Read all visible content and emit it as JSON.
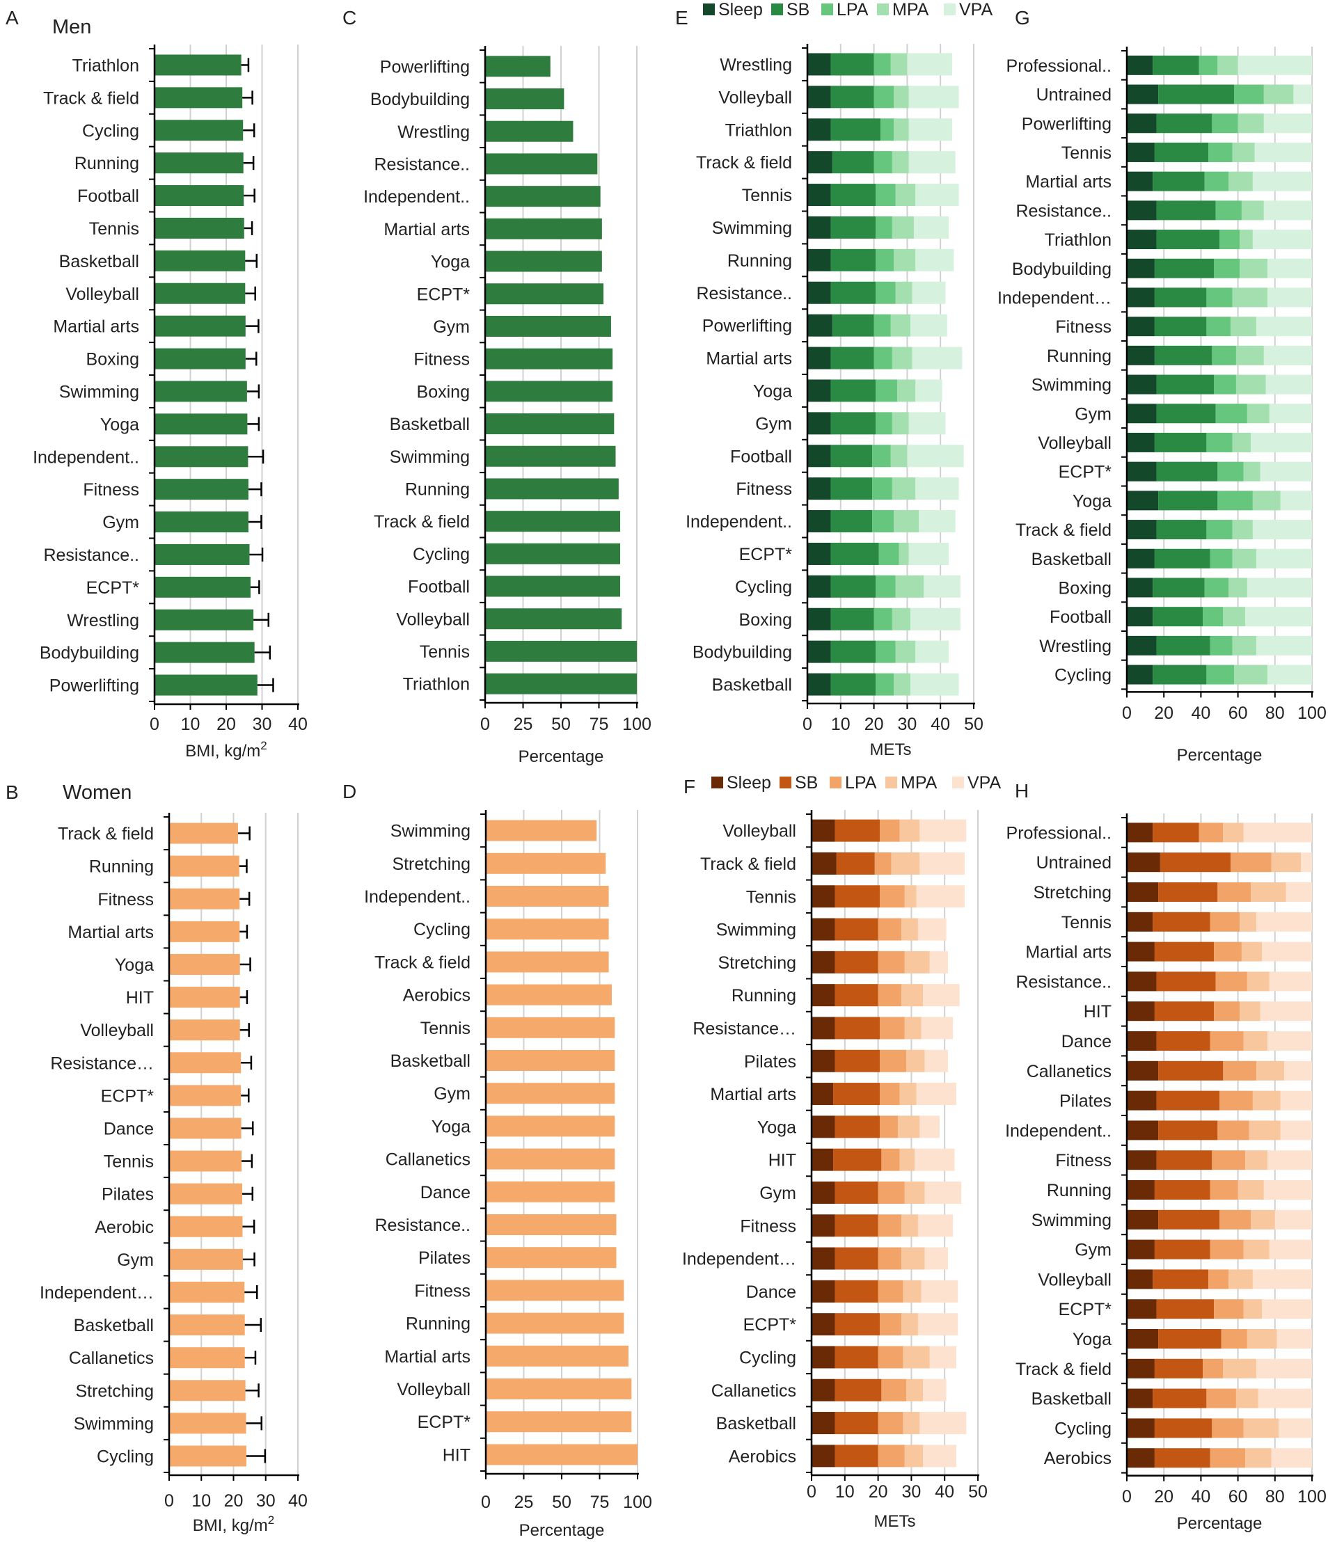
{
  "colors": {
    "men_bar": "#2e7d3e",
    "women_bar": "#f5a96b",
    "grid": "#d0d0d0",
    "axis": "#000000",
    "men_stack": [
      "#14482a",
      "#2a8a44",
      "#66c67d",
      "#a4dfb0",
      "#d6f1dd"
    ],
    "women_stack": [
      "#6a2a05",
      "#c35612",
      "#f2a468",
      "#f8c79e",
      "#fde3cf"
    ]
  },
  "chart_data": [
    {
      "id": "A",
      "panel_label": "A",
      "type": "bar",
      "title": "Men",
      "xlabel": "BMI, kg/m",
      "xlabel_sup": "2",
      "xlim": [
        0,
        40
      ],
      "xticks": [
        0,
        10,
        20,
        30,
        40
      ],
      "categories": [
        "Triathlon",
        "Track & field",
        "Cycling",
        "Running",
        "Football",
        "Tennis",
        "Basketball",
        "Volleyball",
        "Martial arts",
        "Boxing",
        "Swimming",
        "Yoga",
        "Independent..",
        "Fitness",
        "Gym",
        "Resistance..",
        "ECPT*",
        "Wrestling",
        "Bodybuilding",
        "Powerlifting"
      ],
      "values": [
        24.2,
        24.5,
        24.7,
        24.8,
        24.9,
        25.0,
        25.3,
        25.3,
        25.4,
        25.4,
        25.8,
        25.9,
        26.1,
        26.2,
        26.2,
        26.5,
        26.8,
        27.6,
        27.9,
        28.7
      ],
      "errors": [
        2.0,
        2.8,
        3.1,
        2.8,
        3.0,
        2.2,
        3.2,
        2.8,
        3.6,
        3.0,
        3.3,
        3.2,
        4.2,
        3.6,
        3.6,
        3.6,
        2.4,
        4.2,
        4.3,
        4.4
      ]
    },
    {
      "id": "C",
      "panel_label": "C",
      "type": "bar",
      "title": "",
      "xlabel": "Percentage",
      "xlim": [
        0,
        100
      ],
      "xticks": [
        0,
        25,
        50,
        75,
        100
      ],
      "categories": [
        "Powerlifting",
        "Bodybuilding",
        "Wrestling",
        "Resistance..",
        "Independent..",
        "Martial arts",
        "Yoga",
        "ECPT*",
        "Gym",
        "Fitness",
        "Boxing",
        "Basketball",
        "Swimming",
        "Running",
        "Track & field",
        "Cycling",
        "Football",
        "Volleyball",
        "Tennis",
        "Triathlon"
      ],
      "values": [
        43,
        52,
        58,
        74,
        76,
        77,
        77,
        78,
        83,
        84,
        84,
        85,
        86,
        88,
        89,
        89,
        89,
        90,
        100,
        100
      ]
    },
    {
      "id": "E",
      "panel_label": "E",
      "type": "stacked-bar",
      "title": "",
      "xlabel": "METs",
      "xlim": [
        0,
        50
      ],
      "xticks": [
        0,
        10,
        20,
        30,
        40,
        50
      ],
      "legend": [
        "Sleep",
        "SB",
        "LPA",
        "MPA",
        "VPA"
      ],
      "categories": [
        "Wrestling",
        "Volleyball",
        "Triathlon",
        "Track & field",
        "Tennis",
        "Swimming",
        "Running",
        "Resistance..",
        "Powerlifting",
        "Martial arts",
        "Yoga",
        "Gym",
        "Football",
        "Fitness",
        "Independent..",
        "ECPT*",
        "Cycling",
        "Boxing",
        "Bodybuilding",
        "Basketball"
      ],
      "series": [
        {
          "name": "Sleep",
          "values": [
            7.0,
            7.0,
            7.0,
            7.5,
            7.0,
            7.0,
            7.0,
            7.0,
            7.5,
            7.0,
            7.0,
            7.0,
            7.0,
            7.0,
            7.0,
            7.0,
            7.0,
            7.0,
            7.0,
            7.0
          ]
        },
        {
          "name": "SB",
          "values": [
            13.0,
            13.0,
            15.0,
            12.5,
            13.5,
            13.5,
            13.5,
            13.5,
            12.5,
            13.0,
            13.5,
            13.5,
            12.5,
            12.5,
            12.5,
            14.5,
            13.5,
            13.0,
            13.5,
            13.5
          ]
        },
        {
          "name": "LPA",
          "values": [
            5.0,
            6.0,
            4.0,
            5.5,
            6.0,
            5.0,
            5.5,
            6.0,
            5.0,
            5.5,
            6.5,
            5.0,
            5.5,
            6.0,
            6.5,
            6.0,
            6.0,
            5.5,
            6.0,
            5.5
          ]
        },
        {
          "name": "MPA",
          "values": [
            5.0,
            4.5,
            4.5,
            5.0,
            6.0,
            6.5,
            6.5,
            5.0,
            6.0,
            6.0,
            5.5,
            5.0,
            5.0,
            7.0,
            7.5,
            3.0,
            8.5,
            5.5,
            6.0,
            5.0
          ]
        },
        {
          "name": "VPA",
          "values": [
            13.5,
            15.0,
            13.0,
            14.0,
            13.0,
            10.5,
            11.5,
            10.0,
            11.0,
            15.0,
            8.0,
            11.0,
            17.0,
            13.0,
            11.0,
            12.0,
            11.0,
            15.0,
            10.0,
            14.5
          ]
        }
      ]
    },
    {
      "id": "G",
      "panel_label": "G",
      "type": "stacked-bar",
      "title": "",
      "xlabel": "Percentage",
      "xlim": [
        0,
        100
      ],
      "xticks": [
        0,
        20,
        40,
        60,
        80,
        100
      ],
      "categories": [
        "Professional..",
        "Untrained",
        "Powerlifting",
        "Tennis",
        "Martial arts",
        "Resistance..",
        "Triathlon",
        "Bodybuilding",
        "Independent…",
        "Fitness",
        "Running",
        "Swimming",
        "Gym",
        "Volleyball",
        "ECPT*",
        "Yoga",
        "Track & field",
        "Basketball",
        "Boxing",
        "Football",
        "Wrestling",
        "Cycling"
      ],
      "series": [
        {
          "name": "Sleep",
          "values": [
            14,
            17,
            16,
            15,
            14,
            16,
            16,
            15,
            15,
            15,
            15,
            16,
            16,
            15,
            16,
            17,
            16,
            15,
            14,
            14,
            16,
            14
          ]
        },
        {
          "name": "SB",
          "values": [
            25,
            41,
            30,
            29,
            28,
            32,
            34,
            32,
            28,
            28,
            31,
            31,
            32,
            28,
            33,
            32,
            27,
            30,
            28,
            27,
            29,
            29
          ]
        },
        {
          "name": "LPA",
          "values": [
            10,
            16,
            14,
            13,
            13,
            14,
            11,
            14,
            14,
            13,
            13,
            12,
            17,
            14,
            14,
            19,
            14,
            12,
            13,
            11,
            12,
            15
          ]
        },
        {
          "name": "MPA",
          "values": [
            11,
            16,
            14,
            12,
            13,
            12,
            7,
            15,
            19,
            14,
            15,
            16,
            12,
            10,
            9,
            15,
            11,
            13,
            10,
            12,
            13,
            18
          ]
        },
        {
          "name": "VPA",
          "values": [
            40,
            10,
            26,
            31,
            32,
            26,
            32,
            24,
            24,
            30,
            26,
            25,
            23,
            33,
            28,
            17,
            32,
            30,
            35,
            36,
            30,
            24
          ]
        }
      ]
    },
    {
      "id": "B",
      "panel_label": "B",
      "type": "bar",
      "title": "Women",
      "xlabel": "BMI, kg/m",
      "xlabel_sup": "2",
      "xlim": [
        0,
        40
      ],
      "xticks": [
        0,
        10,
        20,
        30,
        40
      ],
      "categories": [
        "Track & field",
        "Running",
        "Fitness",
        "Martial arts",
        "Yoga",
        "HIT",
        "Volleyball",
        "Resistance…",
        "ECPT*",
        "Dance",
        "Tennis",
        "Pilates",
        "Aerobic",
        "Gym",
        "Independent…",
        "Basketball",
        "Callanetics",
        "Stretching",
        "Swimming",
        "Cycling"
      ],
      "values": [
        21.4,
        21.8,
        21.9,
        21.9,
        22.0,
        22.0,
        22.0,
        22.3,
        22.3,
        22.4,
        22.5,
        22.7,
        22.8,
        22.9,
        23.4,
        23.5,
        23.5,
        23.7,
        23.9,
        24.0
      ],
      "errors": [
        3.6,
        2.3,
        3.0,
        2.3,
        3.2,
        2.2,
        2.8,
        3.2,
        2.4,
        3.6,
        3.2,
        3.2,
        3.6,
        3.6,
        3.9,
        5.0,
        3.3,
        4.1,
        4.8,
        5.8
      ]
    },
    {
      "id": "D",
      "panel_label": "D",
      "type": "bar",
      "title": "",
      "xlabel": "Percentage",
      "xlim": [
        0,
        100
      ],
      "xticks": [
        0,
        25,
        50,
        75,
        100
      ],
      "categories": [
        "Swimming",
        "Stretching",
        "Independent..",
        "Cycling",
        "Track & field",
        "Aerobics",
        "Tennis",
        "Basketball",
        "Gym",
        "Yoga",
        "Callanetics",
        "Dance",
        "Resistance..",
        "Pilates",
        "Fitness",
        "Running",
        "Martial arts",
        "Volleyball",
        "ECPT*",
        "HIT"
      ],
      "values": [
        73,
        79,
        81,
        81,
        81,
        83,
        85,
        85,
        85,
        85,
        85,
        85,
        86,
        86,
        91,
        91,
        94,
        96,
        96,
        100
      ]
    },
    {
      "id": "F",
      "panel_label": "F",
      "type": "stacked-bar",
      "title": "",
      "xlabel": "METs",
      "xlim": [
        0,
        50
      ],
      "xticks": [
        0,
        10,
        20,
        30,
        40,
        50
      ],
      "legend": [
        "Sleep",
        "SB",
        "LPA",
        "MPA",
        "VPA"
      ],
      "categories": [
        "Volleyball",
        "Track & field",
        "Tennis",
        "Swimming",
        "Stretching",
        "Running",
        "Resistance…",
        "Pilates",
        "Martial arts",
        "Yoga",
        "HIT",
        "Gym",
        "Fitness",
        "Independent…",
        "Dance",
        "ECPT*",
        "Cycling",
        "Callanetics",
        "Basketball",
        "Aerobics"
      ],
      "series": [
        {
          "name": "Sleep",
          "values": [
            7.0,
            7.5,
            7.0,
            7.0,
            7.0,
            7.0,
            7.0,
            7.0,
            6.5,
            7.0,
            6.5,
            7.0,
            7.0,
            7.0,
            7.0,
            7.0,
            7.0,
            7.0,
            7.0,
            7.0
          ]
        },
        {
          "name": "SB",
          "values": [
            13.5,
            11.5,
            13.5,
            13.0,
            13.0,
            13.0,
            13.5,
            13.5,
            14.0,
            13.5,
            14.5,
            13.0,
            13.0,
            13.0,
            13.0,
            13.5,
            13.0,
            14.0,
            13.0,
            13.0
          ]
        },
        {
          "name": "LPA",
          "values": [
            6.0,
            5.0,
            7.5,
            7.0,
            8.0,
            7.0,
            7.5,
            8.0,
            6.0,
            5.5,
            5.5,
            8.0,
            7.0,
            7.0,
            7.5,
            6.5,
            7.5,
            7.5,
            7.5,
            8.0
          ]
        },
        {
          "name": "MPA",
          "values": [
            6.0,
            8.5,
            3.5,
            5.0,
            7.5,
            6.5,
            5.0,
            5.5,
            5.0,
            6.5,
            4.5,
            6.0,
            5.0,
            7.0,
            5.5,
            5.0,
            8.0,
            5.0,
            5.0,
            5.5
          ]
        },
        {
          "name": "VPA",
          "values": [
            14.0,
            13.5,
            14.5,
            8.5,
            5.5,
            11.0,
            9.5,
            7.0,
            12.0,
            6.0,
            12.0,
            11.0,
            10.5,
            7.0,
            11.0,
            12.0,
            8.0,
            7.0,
            14.0,
            10.0
          ]
        }
      ]
    },
    {
      "id": "H",
      "panel_label": "H",
      "type": "stacked-bar",
      "title": "",
      "xlabel": "Percentage",
      "xlim": [
        0,
        100
      ],
      "xticks": [
        0,
        20,
        40,
        60,
        80,
        100
      ],
      "categories": [
        "Professional..",
        "Untrained",
        "Stretching",
        "Tennis",
        "Martial arts",
        "Resistance..",
        "HIT",
        "Dance",
        "Callanetics",
        "Pilates",
        "Independent..",
        "Fitness",
        "Running",
        "Swimming",
        "Gym",
        "Volleyball",
        "ECPT*",
        "Yoga",
        "Track & field",
        "Basketball",
        "Cycling",
        "Aerobics"
      ],
      "series": [
        {
          "name": "Sleep",
          "values": [
            14,
            18,
            17,
            14,
            15,
            16,
            15,
            16,
            17,
            16,
            17,
            16,
            15,
            17,
            15,
            14,
            16,
            17,
            15,
            14,
            15,
            15
          ]
        },
        {
          "name": "SB",
          "values": [
            25,
            38,
            32,
            31,
            32,
            32,
            32,
            29,
            35,
            34,
            32,
            30,
            30,
            33,
            30,
            30,
            31,
            34,
            26,
            29,
            31,
            30
          ]
        },
        {
          "name": "LPA",
          "values": [
            13,
            22,
            18,
            16,
            15,
            17,
            14,
            18,
            18,
            18,
            17,
            18,
            15,
            17,
            18,
            11,
            16,
            14,
            11,
            16,
            17,
            19
          ]
        },
        {
          "name": "MPA",
          "values": [
            11,
            16,
            19,
            9,
            11,
            12,
            11,
            13,
            15,
            15,
            17,
            12,
            14,
            13,
            14,
            13,
            10,
            16,
            18,
            12,
            19,
            14
          ]
        },
        {
          "name": "VPA",
          "values": [
            37,
            6,
            14,
            30,
            27,
            23,
            28,
            24,
            15,
            17,
            17,
            24,
            26,
            20,
            23,
            32,
            27,
            19,
            30,
            29,
            18,
            22
          ]
        }
      ]
    }
  ]
}
